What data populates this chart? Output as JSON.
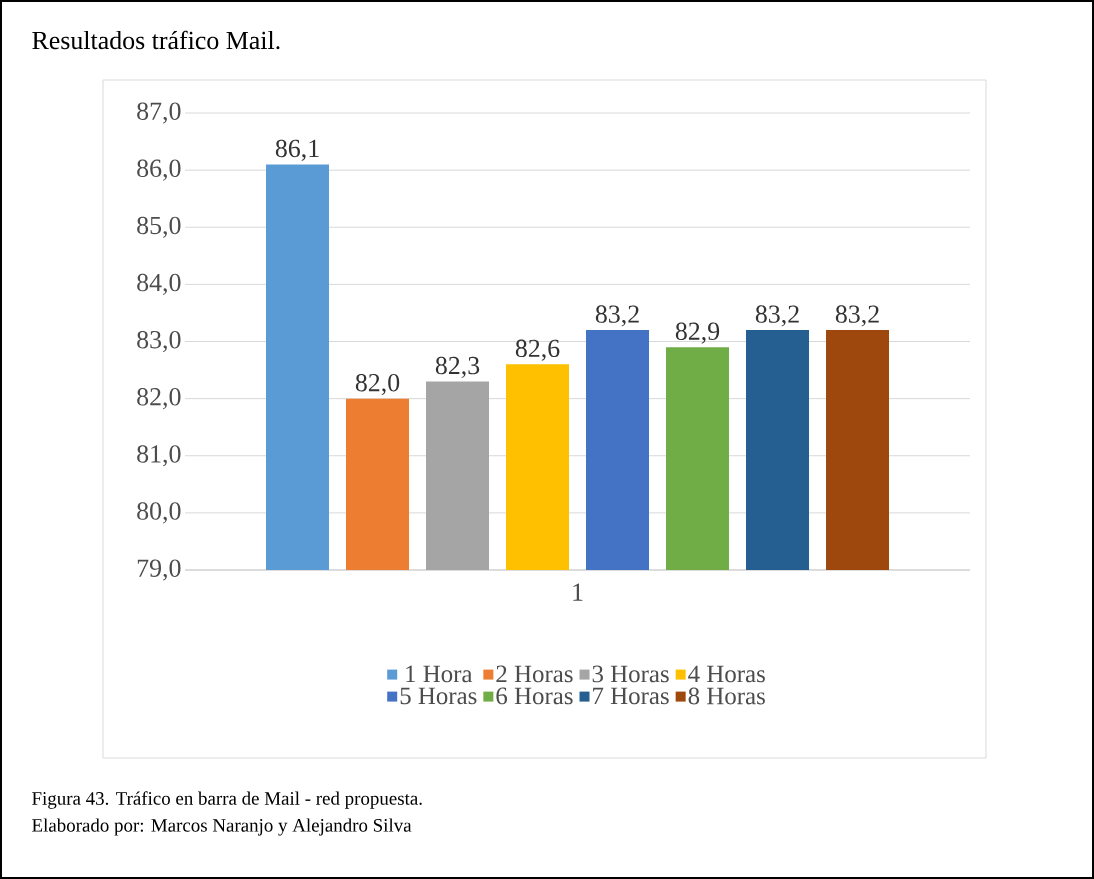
{
  "chart_data": {
    "type": "bar",
    "title": "Resultados tráfico Mail.",
    "categories": [
      "1"
    ],
    "series": [
      {
        "name": "1 Hora",
        "color": "#5b9bd5",
        "values": [
          86.1
        ],
        "value_labels": [
          "86,1"
        ]
      },
      {
        "name": "2 Horas",
        "color": "#ed7d31",
        "values": [
          82.0
        ],
        "value_labels": [
          "82,0"
        ]
      },
      {
        "name": "3 Horas",
        "color": "#a5a5a5",
        "values": [
          82.3
        ],
        "value_labels": [
          "82,3"
        ]
      },
      {
        "name": "4 Horas",
        "color": "#ffc000",
        "values": [
          82.6
        ],
        "value_labels": [
          "82,6"
        ]
      },
      {
        "name": "5 Horas",
        "color": "#4472c4",
        "values": [
          83.2
        ],
        "value_labels": [
          "83,2"
        ]
      },
      {
        "name": "6 Horas",
        "color": "#70ad47",
        "values": [
          82.9
        ],
        "value_labels": [
          "82,9"
        ]
      },
      {
        "name": "7 Horas",
        "color": "#255e91",
        "values": [
          83.2
        ],
        "value_labels": [
          "83,2"
        ]
      },
      {
        "name": "8 Horas",
        "color": "#9e480e",
        "values": [
          83.2
        ],
        "value_labels": [
          "83,2"
        ]
      }
    ],
    "ylim": [
      79,
      87
    ],
    "yticks": [
      {
        "value": 79,
        "label": "79,0"
      },
      {
        "value": 80,
        "label": "80,0"
      },
      {
        "value": 81,
        "label": "81,0"
      },
      {
        "value": 82,
        "label": "82,0"
      },
      {
        "value": 83,
        "label": "83,0"
      },
      {
        "value": 84,
        "label": "84,0"
      },
      {
        "value": 85,
        "label": "85,0"
      },
      {
        "value": 86,
        "label": "86,0"
      },
      {
        "value": 87,
        "label": "87,0"
      }
    ],
    "grid": "y",
    "legend": "bottom",
    "annotations": [
      "Figura 43. Tráfico en barra de Mail - red propuesta.",
      "Elaborado por: Marcos Naranjo y Alejandro Silva"
    ]
  }
}
